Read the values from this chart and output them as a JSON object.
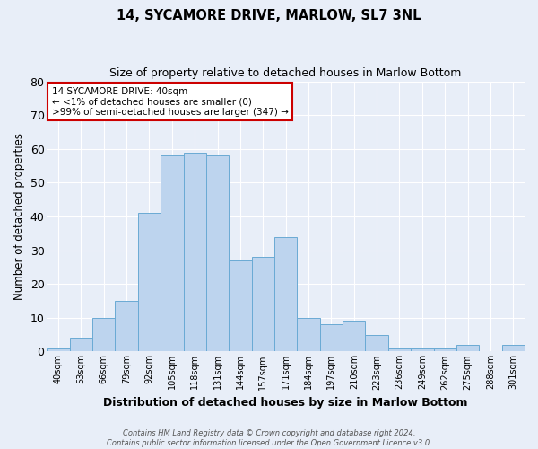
{
  "title1": "14, SYCAMORE DRIVE, MARLOW, SL7 3NL",
  "title2": "Size of property relative to detached houses in Marlow Bottom",
  "xlabel": "Distribution of detached houses by size in Marlow Bottom",
  "ylabel": "Number of detached properties",
  "categories": [
    "40sqm",
    "53sqm",
    "66sqm",
    "79sqm",
    "92sqm",
    "105sqm",
    "118sqm",
    "131sqm",
    "144sqm",
    "157sqm",
    "171sqm",
    "184sqm",
    "197sqm",
    "210sqm",
    "223sqm",
    "236sqm",
    "249sqm",
    "262sqm",
    "275sqm",
    "288sqm",
    "301sqm"
  ],
  "values": [
    1,
    4,
    10,
    15,
    41,
    58,
    59,
    58,
    27,
    28,
    34,
    10,
    8,
    9,
    5,
    1,
    1,
    1,
    2,
    0,
    2
  ],
  "bar_color": "#bdd4ee",
  "bar_edge_color": "#6aaad4",
  "ylim": [
    0,
    80
  ],
  "yticks": [
    0,
    10,
    20,
    30,
    40,
    50,
    60,
    70,
    80
  ],
  "annotation_text": "14 SYCAMORE DRIVE: 40sqm\n← <1% of detached houses are smaller (0)\n>99% of semi-detached houses are larger (347) →",
  "annotation_box_color": "#ffffff",
  "annotation_box_edge_color": "#cc0000",
  "footer1": "Contains HM Land Registry data © Crown copyright and database right 2024.",
  "footer2": "Contains public sector information licensed under the Open Government Licence v3.0.",
  "background_color": "#e8eef8"
}
